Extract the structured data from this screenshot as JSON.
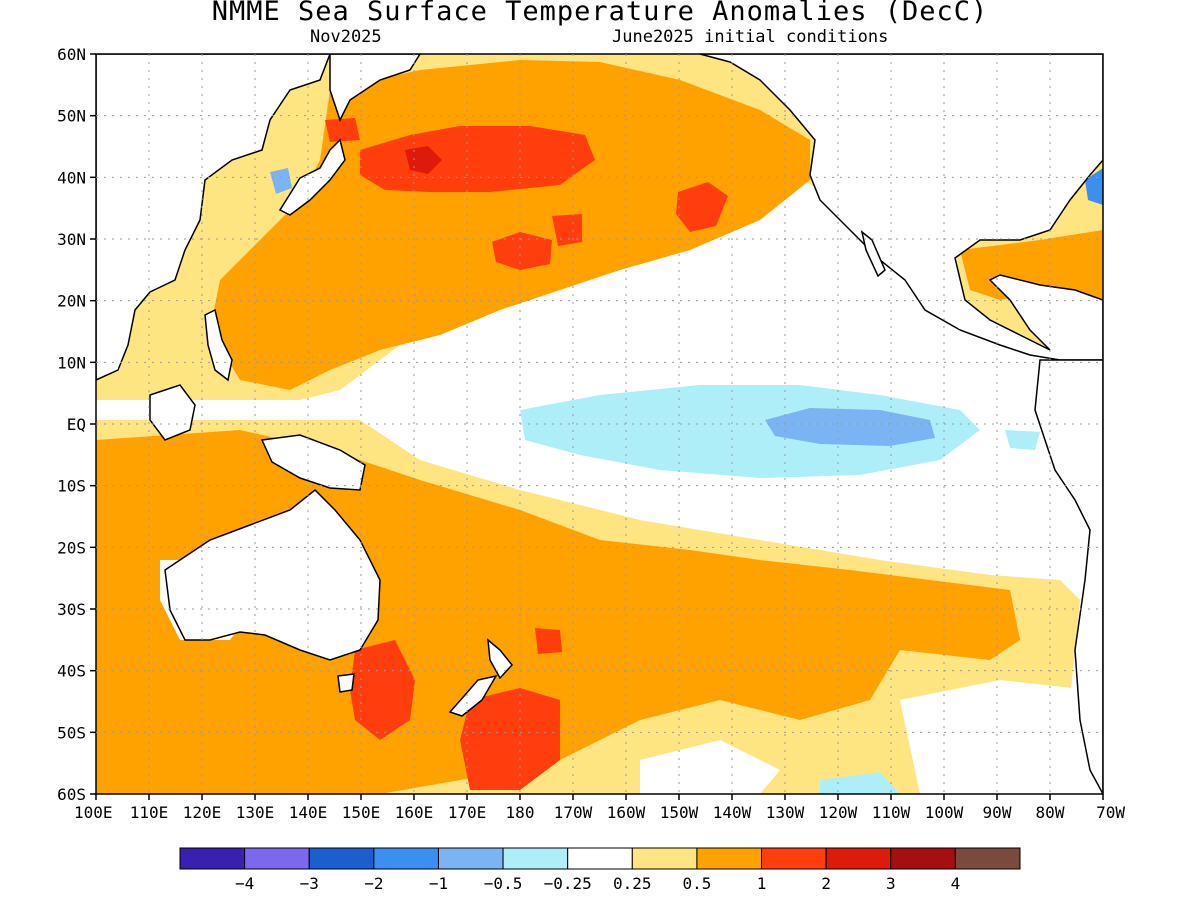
{
  "header": {
    "title": "NMME Sea Surface Temperature Anomalies (DecC)",
    "valid_month": "Nov2025",
    "initial_conditions": "June2025 initial conditions"
  },
  "axes": {
    "lat_labels": [
      "60N",
      "50N",
      "40N",
      "30N",
      "20N",
      "10N",
      "EQ",
      "10S",
      "20S",
      "30S",
      "40S",
      "50S",
      "60S"
    ],
    "lon_labels": [
      "100E",
      "110E",
      "120E",
      "130E",
      "140E",
      "150E",
      "160E",
      "170E",
      "180",
      "170W",
      "160W",
      "150W",
      "140W",
      "130W",
      "120W",
      "110W",
      "100W",
      "90W",
      "80W",
      "70W"
    ]
  },
  "colorbar": {
    "colors": [
      "#3a20b0",
      "#7b68ee",
      "#1a5fd0",
      "#3b8ff0",
      "#7ab4f2",
      "#aeeef8",
      "#ffffff",
      "#ffe482",
      "#ffa200",
      "#ff3d0d",
      "#de1a0a",
      "#a50f0f",
      "#7a4a3c"
    ],
    "labels": [
      "−4",
      "−3",
      "−2",
      "−1",
      "−0.5",
      "−0.25",
      "0.25",
      "0.5",
      "1",
      "2",
      "3",
      "4"
    ]
  },
  "legend_colors": {
    "land": "#ffffff",
    "coast": "#000000",
    "grid": "#9a9a9a"
  }
}
